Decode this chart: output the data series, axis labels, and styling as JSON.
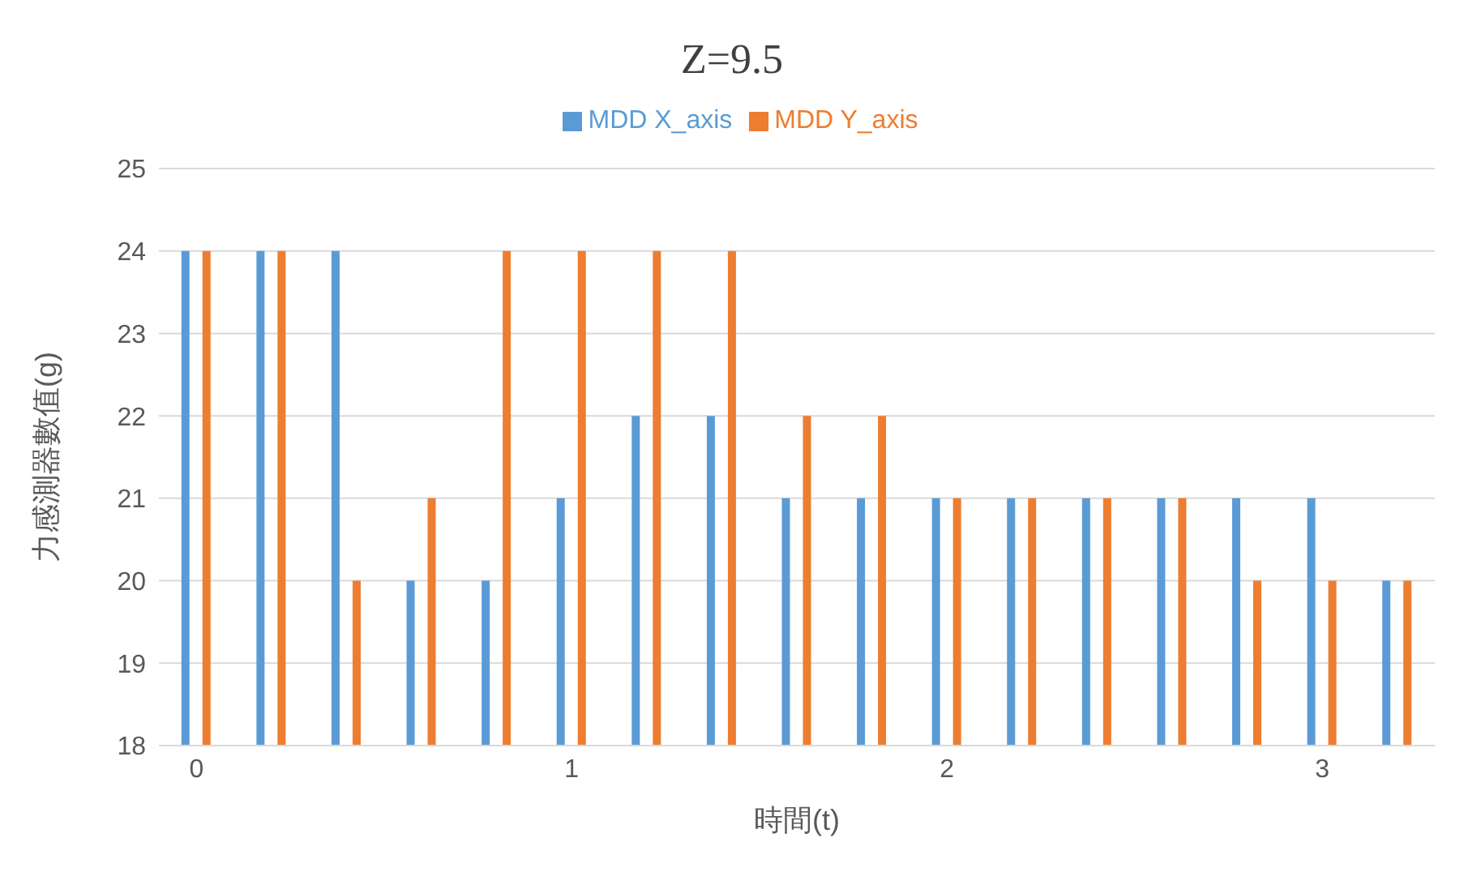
{
  "chart_data": {
    "type": "bar",
    "title": "Z=9.5",
    "xlabel": "時間(t)",
    "ylabel": "力感測器數值(g)",
    "categories": [
      "0",
      null,
      null,
      null,
      null,
      "1",
      null,
      null,
      null,
      null,
      "2",
      null,
      null,
      null,
      null,
      "3",
      null
    ],
    "series": [
      {
        "name": "MDD X_axis",
        "color": "#5b9bd5",
        "values": [
          24,
          24,
          24,
          20,
          20,
          21,
          22,
          22,
          21,
          21,
          21,
          21,
          21,
          21,
          21,
          21,
          20
        ]
      },
      {
        "name": "MDD Y_axis",
        "color": "#ed7d31",
        "values": [
          24,
          24,
          20,
          21,
          24,
          24,
          24,
          24,
          22,
          22,
          21,
          21,
          21,
          21,
          20,
          20,
          20
        ]
      }
    ],
    "ylim": [
      18,
      25
    ],
    "yticks": [
      18,
      19,
      20,
      21,
      22,
      23,
      24,
      25
    ],
    "grid": "y",
    "legend": "top"
  }
}
